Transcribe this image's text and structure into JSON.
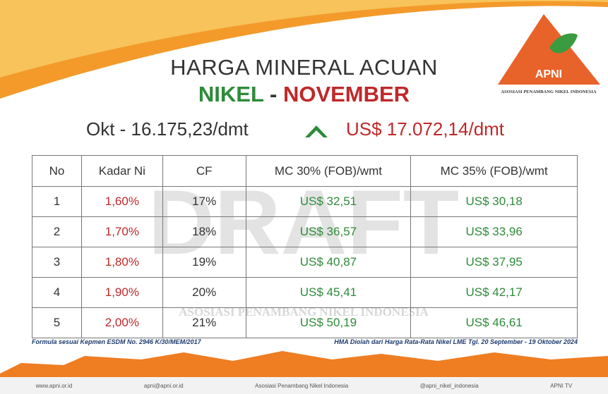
{
  "header": {
    "title": "HARGA MINERAL ACUAN",
    "subtitle_left": "NIKEL",
    "subtitle_separator": "-",
    "subtitle_right": "NOVEMBER",
    "previous_price": "Okt - 16.175,23/dmt",
    "current_price": "US$ 17.072,14/dmt"
  },
  "logo": {
    "name": "APNI",
    "full_name": "ASOSIASI PENAMBANG NIKEL INDONESIA"
  },
  "table": {
    "columns": [
      "No",
      "Kadar Ni",
      "CF",
      "MC 30% (FOB)/wmt",
      "MC 35% (FOB)/wmt"
    ],
    "rows": [
      [
        "1",
        "1,60%",
        "17%",
        "US$ 32,51",
        "US$ 30,18"
      ],
      [
        "2",
        "1,70%",
        "18%",
        "US$ 36,57",
        "US$ 33,96"
      ],
      [
        "3",
        "1,80%",
        "19%",
        "US$ 40,87",
        "US$ 37,95"
      ],
      [
        "4",
        "1,90%",
        "20%",
        "US$ 45,41",
        "US$ 42,17"
      ],
      [
        "5",
        "2,00%",
        "21%",
        "US$ 50,19",
        "US$ 46,61"
      ]
    ]
  },
  "watermark": {
    "text": "DRAFT",
    "caption": "ASOSIASI PENAMBANG NIKEL INDONESIA"
  },
  "notes": {
    "left": "Formula sesuai Kepmen ESDM No. 2946 K/30/MEM/2017",
    "right": "HMA Diolah dari Harga Rata-Rata Nikel LME Tgl. 20 September - 19 Oktober 2024"
  },
  "footer": [
    "www.apni.or.id",
    "apni@apni.or.id",
    "Asosiasi Penambang Nikel Indonesia",
    "@apni_nikel_indonesia",
    "APNI TV"
  ]
}
